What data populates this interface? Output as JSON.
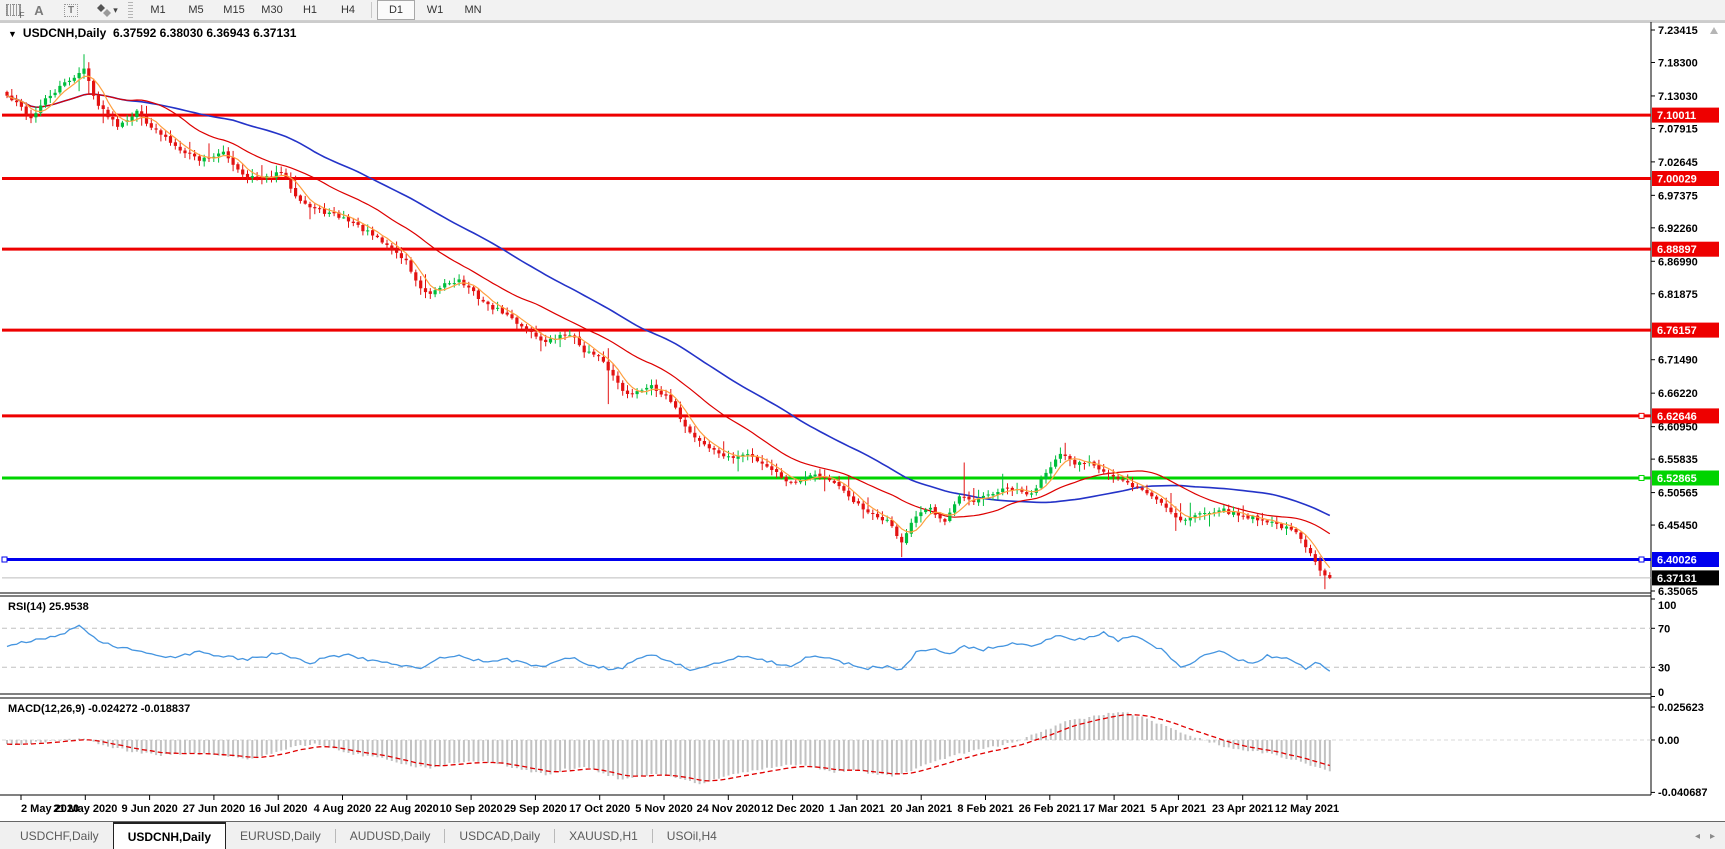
{
  "toolbar": {
    "glyph_f": "F",
    "glyph_a": "A",
    "glyph_t": "T",
    "timeframes": [
      "M1",
      "M5",
      "M15",
      "M30",
      "H1",
      "H4",
      "D1",
      "W1",
      "MN"
    ],
    "active_timeframe": "D1"
  },
  "chart": {
    "collapse_glyph": "▼",
    "symbol_title": "USDCNH,Daily",
    "ohlc_text": "6.37592 6.38030 6.36943 6.37131",
    "rsi_label": "RSI(14)",
    "rsi_value": "25.9538",
    "macd_label": "MACD(12,26,9)",
    "macd_values": "-0.024272 -0.018837"
  },
  "chart_data": [
    {
      "type": "candlestick",
      "title": "USDCNH,Daily",
      "current_bar": {
        "open": 6.37592,
        "high": 6.3803,
        "low": 6.36943,
        "close": 6.37131
      },
      "bars": 276,
      "axis_max": 7.23415,
      "axis_min": 6.35065,
      "price_axis_ticks": [
        "7.23415",
        "7.18300",
        "7.13030",
        "7.07915",
        "7.02645",
        "6.97375",
        "6.92260",
        "6.86990",
        "6.81875",
        "6.71490",
        "6.66220",
        "6.60950",
        "6.55835",
        "6.50565",
        "6.45450",
        "6.35065"
      ],
      "hlines": [
        {
          "price": 7.10011,
          "label": "7.10011",
          "color": "#ee0000",
          "kind": "resistance",
          "handle": false
        },
        {
          "price": 7.00029,
          "label": "7.00029",
          "color": "#ee0000",
          "kind": "resistance",
          "handle": false
        },
        {
          "price": 6.88897,
          "label": "6.88897",
          "color": "#ee0000",
          "kind": "resistance",
          "handle": false
        },
        {
          "price": 6.76157,
          "label": "6.76157",
          "color": "#ee0000",
          "kind": "resistance",
          "handle": false
        },
        {
          "price": 6.62646,
          "label": "6.62646",
          "color": "#ee0000",
          "kind": "resistance",
          "handle": true
        },
        {
          "price": 6.52865,
          "label": "6.52865",
          "color": "#00d400",
          "kind": "support",
          "handle": true
        },
        {
          "price": 6.40026,
          "label": "6.40026",
          "color": "#0000ee",
          "kind": "support",
          "handle": true
        },
        {
          "price": 6.37131,
          "label": "6.37131",
          "color": "#000000",
          "kind": "current",
          "handle": false
        }
      ],
      "close_anchors": [
        [
          0,
          7.13
        ],
        [
          3,
          7.112
        ],
        [
          5,
          7.095
        ],
        [
          8,
          7.124
        ],
        [
          12,
          7.15
        ],
        [
          16,
          7.172
        ],
        [
          19,
          7.115
        ],
        [
          23,
          7.085
        ],
        [
          27,
          7.105
        ],
        [
          31,
          7.075
        ],
        [
          35,
          7.052
        ],
        [
          40,
          7.03
        ],
        [
          45,
          7.04
        ],
        [
          49,
          7.008
        ],
        [
          53,
          6.998
        ],
        [
          57,
          7.01
        ],
        [
          60,
          6.975
        ],
        [
          63,
          6.955
        ],
        [
          67,
          6.945
        ],
        [
          71,
          6.935
        ],
        [
          75,
          6.915
        ],
        [
          79,
          6.895
        ],
        [
          83,
          6.87
        ],
        [
          86,
          6.825
        ],
        [
          88,
          6.815
        ],
        [
          91,
          6.835
        ],
        [
          94,
          6.84
        ],
        [
          97,
          6.82
        ],
        [
          100,
          6.8
        ],
        [
          103,
          6.79
        ],
        [
          107,
          6.768
        ],
        [
          112,
          6.742
        ],
        [
          115,
          6.752
        ],
        [
          117,
          6.756
        ],
        [
          120,
          6.73
        ],
        [
          123,
          6.718
        ],
        [
          125,
          6.7
        ],
        [
          128,
          6.668
        ],
        [
          130,
          6.66
        ],
        [
          134,
          6.676
        ],
        [
          138,
          6.648
        ],
        [
          142,
          6.6
        ],
        [
          146,
          6.576
        ],
        [
          150,
          6.56
        ],
        [
          154,
          6.566
        ],
        [
          158,
          6.548
        ],
        [
          163,
          6.52
        ],
        [
          167,
          6.536
        ],
        [
          171,
          6.526
        ],
        [
          175,
          6.5
        ],
        [
          179,
          6.472
        ],
        [
          183,
          6.462
        ],
        [
          186,
          6.428
        ],
        [
          189,
          6.468
        ],
        [
          192,
          6.48
        ],
        [
          195,
          6.462
        ],
        [
          198,
          6.498
        ],
        [
          201,
          6.49
        ],
        [
          204,
          6.502
        ],
        [
          208,
          6.512
        ],
        [
          213,
          6.502
        ],
        [
          216,
          6.54
        ],
        [
          219,
          6.565
        ],
        [
          222,
          6.55
        ],
        [
          225,
          6.556
        ],
        [
          228,
          6.54
        ],
        [
          231,
          6.526
        ],
        [
          236,
          6.51
        ],
        [
          240,
          6.49
        ],
        [
          244,
          6.462
        ],
        [
          248,
          6.472
        ],
        [
          252,
          6.48
        ],
        [
          256,
          6.47
        ],
        [
          260,
          6.465
        ],
        [
          264,
          6.456
        ],
        [
          268,
          6.442
        ],
        [
          271,
          6.408
        ],
        [
          273,
          6.385
        ],
        [
          275,
          6.37131
        ]
      ],
      "up_color": "#00be3c",
      "down_color": "#e31212",
      "moving_averages": [
        {
          "name": "fast",
          "period": 5,
          "color": "#ffa040"
        },
        {
          "name": "mid",
          "period": 22,
          "color": "#dd0000"
        },
        {
          "name": "slow",
          "period": 48,
          "color": "#2433c8"
        }
      ]
    },
    {
      "type": "line",
      "name": "RSI",
      "period": 14,
      "value": 25.9538,
      "levels": [
        "100",
        "70",
        "30",
        "0"
      ],
      "level_values": [
        100,
        70,
        30,
        0
      ],
      "dashed_levels": [
        70,
        30
      ],
      "color": "#4595e0",
      "anchors": [
        [
          0,
          52
        ],
        [
          6,
          58
        ],
        [
          12,
          64
        ],
        [
          15,
          74
        ],
        [
          19,
          56
        ],
        [
          24,
          50
        ],
        [
          29,
          44
        ],
        [
          34,
          40
        ],
        [
          40,
          46
        ],
        [
          45,
          41
        ],
        [
          49,
          38
        ],
        [
          53,
          40
        ],
        [
          57,
          46
        ],
        [
          60,
          38
        ],
        [
          63,
          35
        ],
        [
          67,
          40
        ],
        [
          71,
          42
        ],
        [
          75,
          38
        ],
        [
          79,
          35
        ],
        [
          83,
          31
        ],
        [
          86,
          28
        ],
        [
          90,
          40
        ],
        [
          94,
          43
        ],
        [
          97,
          38
        ],
        [
          100,
          35
        ],
        [
          104,
          38
        ],
        [
          108,
          33
        ],
        [
          112,
          31
        ],
        [
          115,
          38
        ],
        [
          118,
          40
        ],
        [
          121,
          33
        ],
        [
          125,
          28
        ],
        [
          128,
          30
        ],
        [
          131,
          40
        ],
        [
          134,
          42
        ],
        [
          138,
          36
        ],
        [
          142,
          28
        ],
        [
          146,
          32
        ],
        [
          150,
          38
        ],
        [
          154,
          42
        ],
        [
          158,
          36
        ],
        [
          163,
          30
        ],
        [
          167,
          42
        ],
        [
          171,
          38
        ],
        [
          175,
          33
        ],
        [
          179,
          29
        ],
        [
          183,
          31
        ],
        [
          186,
          27
        ],
        [
          189,
          45
        ],
        [
          193,
          49
        ],
        [
          196,
          44
        ],
        [
          199,
          52
        ],
        [
          203,
          48
        ],
        [
          206,
          52
        ],
        [
          210,
          55
        ],
        [
          213,
          50
        ],
        [
          216,
          58
        ],
        [
          219,
          64
        ],
        [
          222,
          57
        ],
        [
          225,
          61
        ],
        [
          228,
          66
        ],
        [
          231,
          58
        ],
        [
          234,
          62
        ],
        [
          237,
          55
        ],
        [
          240,
          48
        ],
        [
          244,
          30
        ],
        [
          247,
          36
        ],
        [
          250,
          44
        ],
        [
          253,
          47
        ],
        [
          256,
          38
        ],
        [
          259,
          33
        ],
        [
          262,
          42
        ],
        [
          265,
          40
        ],
        [
          268,
          36
        ],
        [
          270,
          28
        ],
        [
          272,
          36
        ],
        [
          275,
          26
        ]
      ]
    },
    {
      "type": "histogram+line",
      "name": "MACD",
      "params": [
        12,
        26,
        9
      ],
      "value": -0.024272,
      "signal_value": -0.018837,
      "scale_labels": [
        "0.025623",
        "0.00",
        "-0.040687"
      ],
      "scale_values": [
        0.025623,
        0,
        -0.040687
      ],
      "bar_color": "#c2c2c2",
      "signal_color": "#e00000",
      "anchors": [
        [
          0,
          -0.004
        ],
        [
          6,
          -0.002
        ],
        [
          12,
          0.0
        ],
        [
          16,
          0.001
        ],
        [
          20,
          -0.004
        ],
        [
          26,
          -0.009
        ],
        [
          32,
          -0.012
        ],
        [
          38,
          -0.01
        ],
        [
          44,
          -0.012
        ],
        [
          50,
          -0.015
        ],
        [
          56,
          -0.01
        ],
        [
          60,
          -0.005
        ],
        [
          64,
          -0.003
        ],
        [
          68,
          -0.007
        ],
        [
          72,
          -0.011
        ],
        [
          76,
          -0.013
        ],
        [
          80,
          -0.016
        ],
        [
          84,
          -0.02
        ],
        [
          88,
          -0.022
        ],
        [
          92,
          -0.018
        ],
        [
          96,
          -0.016
        ],
        [
          100,
          -0.017
        ],
        [
          104,
          -0.02
        ],
        [
          108,
          -0.024
        ],
        [
          112,
          -0.027
        ],
        [
          116,
          -0.023
        ],
        [
          120,
          -0.021
        ],
        [
          124,
          -0.026
        ],
        [
          128,
          -0.031
        ],
        [
          132,
          -0.028
        ],
        [
          136,
          -0.026
        ],
        [
          140,
          -0.03
        ],
        [
          144,
          -0.034
        ],
        [
          148,
          -0.03
        ],
        [
          152,
          -0.026
        ],
        [
          156,
          -0.023
        ],
        [
          160,
          -0.021
        ],
        [
          164,
          -0.019
        ],
        [
          168,
          -0.022
        ],
        [
          172,
          -0.025
        ],
        [
          176,
          -0.024
        ],
        [
          180,
          -0.026
        ],
        [
          184,
          -0.028
        ],
        [
          188,
          -0.024
        ],
        [
          192,
          -0.018
        ],
        [
          196,
          -0.013
        ],
        [
          200,
          -0.009
        ],
        [
          204,
          -0.006
        ],
        [
          208,
          -0.003
        ],
        [
          212,
          0.002
        ],
        [
          216,
          0.008
        ],
        [
          220,
          0.014
        ],
        [
          224,
          0.017
        ],
        [
          228,
          0.02
        ],
        [
          232,
          0.022
        ],
        [
          236,
          0.018
        ],
        [
          240,
          0.012
        ],
        [
          244,
          0.006
        ],
        [
          248,
          0.001
        ],
        [
          252,
          -0.004
        ],
        [
          256,
          -0.007
        ],
        [
          260,
          -0.009
        ],
        [
          264,
          -0.012
        ],
        [
          268,
          -0.016
        ],
        [
          272,
          -0.021
        ],
        [
          275,
          -0.024272
        ]
      ]
    }
  ],
  "time_axis": {
    "dates": [
      "2 May 2020",
      "21 May 2020",
      "9 Jun 2020",
      "27 Jun 2020",
      "16 Jul 2020",
      "4 Aug 2020",
      "22 Aug 2020",
      "10 Sep 2020",
      "29 Sep 2020",
      "17 Oct 2020",
      "5 Nov 2020",
      "24 Nov 2020",
      "12 Dec 2020",
      "1 Jan 2021",
      "20 Jan 2021",
      "8 Feb 2021",
      "26 Feb 2021",
      "17 Mar 2021",
      "5 Apr 2021",
      "23 Apr 2021",
      "12 May 2021"
    ]
  },
  "tabs": {
    "items": [
      {
        "label": "USDCHF,Daily",
        "active": false
      },
      {
        "label": "USDCNH,Daily",
        "active": true
      },
      {
        "label": "EURUSD,Daily",
        "active": false
      },
      {
        "label": "AUDUSD,Daily",
        "active": false
      },
      {
        "label": "USDCAD,Daily",
        "active": false
      },
      {
        "label": "XAUUSD,H1",
        "active": false
      },
      {
        "label": "USOil,H4",
        "active": false
      }
    ],
    "scroll_left_glyph": "◂",
    "scroll_right_glyph": "▸"
  }
}
